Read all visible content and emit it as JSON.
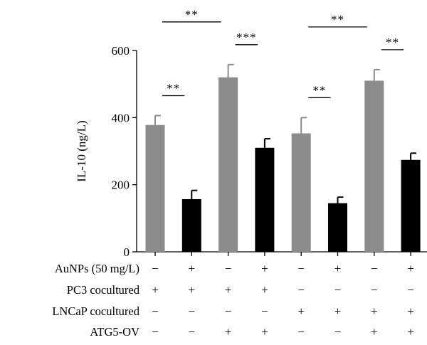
{
  "chart_data": {
    "type": "bar",
    "ylabel": "IL-10 (ng/L)",
    "ylim": [
      0,
      600
    ],
    "yticks": [
      0,
      200,
      400,
      600
    ],
    "grid": false,
    "legend": "none",
    "bars": [
      {
        "value": 378,
        "error": 28,
        "color": "#8c8c8c"
      },
      {
        "value": 157,
        "error": 26,
        "color": "#000000"
      },
      {
        "value": 520,
        "error": 38,
        "color": "#8c8c8c"
      },
      {
        "value": 310,
        "error": 27,
        "color": "#000000"
      },
      {
        "value": 353,
        "error": 47,
        "color": "#8c8c8c"
      },
      {
        "value": 145,
        "error": 18,
        "color": "#000000"
      },
      {
        "value": 510,
        "error": 33,
        "color": "#8c8c8c"
      },
      {
        "value": 274,
        "error": 20,
        "color": "#000000"
      }
    ],
    "significance": [
      {
        "from_bar": 1,
        "to_bar": 2,
        "label": "**"
      },
      {
        "from_bar": 1,
        "to_bar": 3,
        "label": "**"
      },
      {
        "from_bar": 3,
        "to_bar": 4,
        "label": "***"
      },
      {
        "from_bar": 5,
        "to_bar": 6,
        "label": "**"
      },
      {
        "from_bar": 5,
        "to_bar": 7,
        "label": "**"
      },
      {
        "from_bar": 7,
        "to_bar": 8,
        "label": "**"
      }
    ],
    "conditions": [
      {
        "label": "AuNPs (50 mg/L)",
        "values": [
          "−",
          "+",
          "−",
          "+",
          "−",
          "+",
          "−",
          "+"
        ]
      },
      {
        "label": "PC3 cocultured",
        "values": [
          "+",
          "+",
          "+",
          "+",
          "−",
          "−",
          "−",
          "−"
        ]
      },
      {
        "label": "LNCaP cocultured",
        "values": [
          "−",
          "−",
          "−",
          "−",
          "+",
          "+",
          "+",
          "+"
        ]
      },
      {
        "label": "ATG5-OV",
        "values": [
          "−",
          "−",
          "+",
          "+",
          "−",
          "−",
          "+",
          "+"
        ]
      }
    ]
  }
}
